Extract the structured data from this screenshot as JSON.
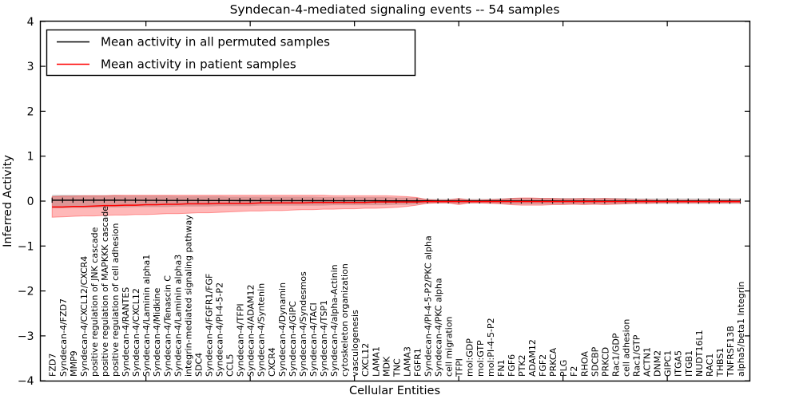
{
  "figure": {
    "title": "Syndecan-4-mediated signaling events -- 54 samples"
  },
  "legend": {
    "position": "upper left",
    "entries": [
      {
        "label": "Mean activity in all permuted samples",
        "color": "#000000"
      },
      {
        "label": "Mean activity in patient samples",
        "color": "#ff0000"
      }
    ]
  },
  "colors": {
    "permuted_line": "#000000",
    "patient_line": "#ff0000",
    "permuted_band": "rgba(150,150,150,0.45)",
    "patient_band": "rgba(255,0,0,0.28)",
    "patient_band_edge": "rgba(255,0,0,0.35)"
  },
  "chart_data": {
    "type": "line",
    "title": "Syndecan-4-mediated signaling events -- 54 samples",
    "xlabel": "Cellular Entities",
    "ylabel": "Inferred Activity",
    "ylim": [
      -4,
      4
    ],
    "yticks": [
      -4,
      -3,
      -2,
      -1,
      0,
      1,
      2,
      3,
      4
    ],
    "ytick_labels": [
      "−4",
      "−3",
      "−2",
      "−1",
      "0",
      "1",
      "2",
      "3",
      "4"
    ],
    "xtick_major_category_indices": [
      10,
      20,
      30,
      40,
      50,
      60
    ],
    "grid": false,
    "legend_position": "upper left",
    "categories": [
      "FZD7",
      "Syndecan-4/FZD7",
      "MMP9",
      "Syndecan-4/CXCL12/CXCR4",
      "positive regulation of JNK cascade",
      "positive regulation of MAPKKK cascade",
      "positive regulation of cell adhesion",
      "Syndecan-4/RANTES",
      "Syndecan-4/CXCL12",
      "Syndecan-4/Laminin alpha1",
      "Syndecan-4/Midkine",
      "Syndecan-4/Tenascin C",
      "Syndecan-4/Laminin alpha3",
      "integrin-mediated signaling pathway",
      "SDC4",
      "Syndecan-4/FGFR1/FGF",
      "Syndecan-4/PI-4-5-P2",
      "CCL5",
      "Syndecan-4/TFPI",
      "Syndecan-4/ADAM12",
      "Syndecan-4/Syntenin",
      "CXCR4",
      "Syndecan-4/Dynamin",
      "Syndecan-4/GIPC",
      "Syndecan-4/Syndesmos",
      "Syndecan-4/TACI",
      "Syndecan-4/TSP1",
      "Syndecan-4/alpha-Actinin",
      "cytoskeleton organization",
      "vasculogenesis",
      "CXCL12",
      "LAMA1",
      "MDK",
      "TNC",
      "LAMA3",
      "FGFR1",
      "Syndecan-4/PI-4-5-P2/PKC alpha",
      "Syndecan-4/PKC alpha",
      "cell migration",
      "TFPI",
      "mol:GDP",
      "mol:GTP",
      "mol:PI-4-5-P2",
      "FN1",
      "FGF6",
      "PTK2",
      "ADAM12",
      "FGF2",
      "PRKCA",
      "PLG",
      "F2",
      "RHOA",
      "SDCBP",
      "PRKCD",
      "Rac1/GDP",
      "cell adhesion",
      "Rac1/GTP",
      "ACTN1",
      "DNM2",
      "GIPC1",
      "ITGA5",
      "ITGB1",
      "NUDT16L1",
      "RAC1",
      "THBS1",
      "TNFRSF13B",
      "alpha5/beta1 Integrin"
    ],
    "series": [
      {
        "name": "Mean activity in all permuted samples",
        "color": "#000000",
        "band_fill": "rgba(150,150,150,0.45)",
        "band_stroke": "none",
        "values": [
          0.02,
          0.02,
          0.02,
          0.02,
          0.02,
          0.02,
          0.02,
          0.018,
          0.018,
          0.016,
          0.016,
          0.015,
          0.015,
          0.014,
          0.014,
          0.013,
          0.012,
          0.012,
          0.011,
          0.011,
          0.01,
          0.01,
          0.01,
          0.01,
          0.01,
          0.009,
          0.009,
          0.008,
          0.008,
          0.008,
          0.007,
          0.007,
          0.006,
          0.006,
          0.006,
          0.005,
          0.005,
          0.004,
          0.004,
          0.004,
          0.003,
          0.003,
          0.003,
          0.002,
          0.002,
          0.002,
          0.002,
          0.002,
          0.002,
          0.001,
          0.001,
          0.001,
          0.001,
          0.001,
          0.001,
          0.001,
          0,
          0,
          0,
          0,
          0,
          0,
          0,
          0,
          0,
          0,
          0
        ],
        "band_upper": [
          0.14,
          0.14,
          0.14,
          0.13,
          0.13,
          0.13,
          0.13,
          0.12,
          0.12,
          0.12,
          0.12,
          0.12,
          0.11,
          0.11,
          0.11,
          0.11,
          0.11,
          0.1,
          0.1,
          0.1,
          0.1,
          0.1,
          0.1,
          0.1,
          0.1,
          0.1,
          0.09,
          0.09,
          0.09,
          0.09,
          0.09,
          0.09,
          0.09,
          0.08,
          0.08,
          0.07,
          0.05,
          0.05,
          0.05,
          0.06,
          0.05,
          0.05,
          0.05,
          0.06,
          0.07,
          0.07,
          0.07,
          0.07,
          0.07,
          0.07,
          0.07,
          0.07,
          0.07,
          0.07,
          0.07,
          0.07,
          0.06,
          0.06,
          0.06,
          0.06,
          0.06,
          0.06,
          0.06,
          0.06,
          0.06,
          0.06,
          0.06
        ],
        "band_lower": [
          -0.16,
          -0.16,
          -0.15,
          -0.15,
          -0.15,
          -0.14,
          -0.14,
          -0.14,
          -0.13,
          -0.13,
          -0.13,
          -0.13,
          -0.12,
          -0.12,
          -0.12,
          -0.12,
          -0.11,
          -0.11,
          -0.11,
          -0.11,
          -0.1,
          -0.1,
          -0.1,
          -0.1,
          -0.1,
          -0.1,
          -0.1,
          -0.09,
          -0.09,
          -0.09,
          -0.09,
          -0.09,
          -0.09,
          -0.08,
          -0.08,
          -0.07,
          -0.05,
          -0.05,
          -0.05,
          -0.06,
          -0.05,
          -0.05,
          -0.05,
          -0.06,
          -0.07,
          -0.07,
          -0.07,
          -0.07,
          -0.07,
          -0.07,
          -0.07,
          -0.07,
          -0.07,
          -0.07,
          -0.07,
          -0.07,
          -0.06,
          -0.06,
          -0.06,
          -0.06,
          -0.06,
          -0.06,
          -0.06,
          -0.06,
          -0.06,
          -0.06,
          -0.06
        ]
      },
      {
        "name": "Mean activity in patient samples",
        "color": "#ff0000",
        "band_fill": "rgba(255,0,0,0.28)",
        "band_stroke": "rgba(255,0,0,0.35)",
        "values": [
          -0.13,
          -0.13,
          -0.12,
          -0.12,
          -0.11,
          -0.1,
          -0.1,
          -0.09,
          -0.09,
          -0.08,
          -0.08,
          -0.07,
          -0.07,
          -0.06,
          -0.06,
          -0.06,
          -0.05,
          -0.05,
          -0.05,
          -0.05,
          -0.04,
          -0.04,
          -0.04,
          -0.04,
          -0.04,
          -0.03,
          -0.03,
          -0.03,
          -0.03,
          -0.03,
          -0.03,
          -0.02,
          -0.02,
          -0.02,
          -0.02,
          -0.02,
          -0.01,
          -0.01,
          -0.01,
          -0.01,
          -0.01,
          -0.01,
          -0.01,
          -0.01,
          -0.01,
          -0.01,
          -0.01,
          -0.01,
          -0.01,
          -0.01,
          -0.01,
          -0.01,
          -0.01,
          -0.01,
          -0.01,
          -0.01,
          -0.01,
          -0.01,
          -0.01,
          -0.01,
          -0.01,
          -0.01,
          -0.01,
          -0.01,
          -0.01,
          -0.01,
          -0.01
        ],
        "band_upper": [
          0.1,
          0.11,
          0.11,
          0.12,
          0.12,
          0.12,
          0.13,
          0.13,
          0.13,
          0.13,
          0.13,
          0.13,
          0.13,
          0.13,
          0.13,
          0.13,
          0.13,
          0.13,
          0.13,
          0.13,
          0.13,
          0.13,
          0.13,
          0.13,
          0.13,
          0.13,
          0.13,
          0.12,
          0.12,
          0.12,
          0.12,
          0.12,
          0.12,
          0.11,
          0.1,
          0.08,
          0.03,
          0.02,
          0.02,
          0.06,
          0.02,
          0.02,
          0.03,
          0.04,
          0.06,
          0.07,
          0.07,
          0.06,
          0.06,
          0.05,
          0.05,
          0.06,
          0.05,
          0.06,
          0.05,
          0.04,
          0.03,
          0.03,
          0.02,
          0.02,
          0.02,
          0.02,
          0.02,
          0.02,
          0.02,
          0.02,
          0.02
        ],
        "band_lower": [
          -0.36,
          -0.35,
          -0.34,
          -0.33,
          -0.33,
          -0.32,
          -0.31,
          -0.31,
          -0.3,
          -0.3,
          -0.29,
          -0.28,
          -0.28,
          -0.27,
          -0.26,
          -0.26,
          -0.25,
          -0.24,
          -0.23,
          -0.22,
          -0.22,
          -0.21,
          -0.21,
          -0.2,
          -0.19,
          -0.19,
          -0.18,
          -0.18,
          -0.17,
          -0.17,
          -0.16,
          -0.16,
          -0.15,
          -0.14,
          -0.12,
          -0.09,
          -0.05,
          -0.04,
          -0.04,
          -0.08,
          -0.04,
          -0.04,
          -0.05,
          -0.06,
          -0.08,
          -0.09,
          -0.09,
          -0.09,
          -0.08,
          -0.08,
          -0.07,
          -0.08,
          -0.07,
          -0.08,
          -0.07,
          -0.06,
          -0.05,
          -0.05,
          -0.04,
          -0.04,
          -0.04,
          -0.04,
          -0.04,
          -0.04,
          -0.04,
          -0.04,
          -0.04
        ]
      }
    ]
  }
}
